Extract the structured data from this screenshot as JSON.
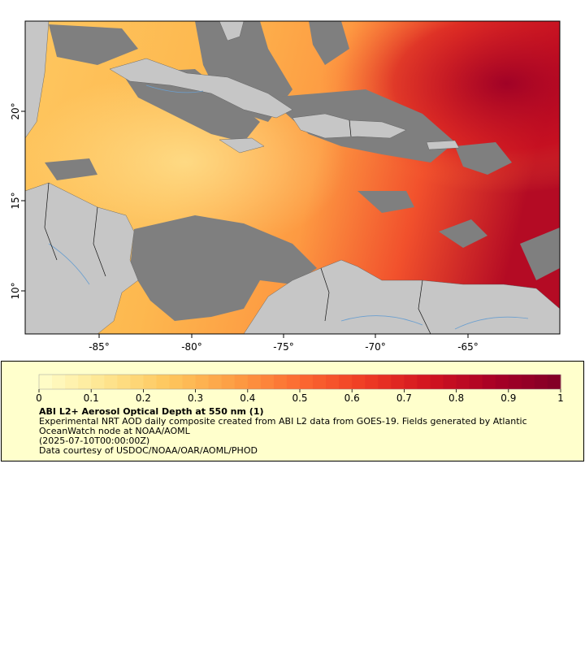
{
  "map": {
    "x_ticks": [
      "-85°",
      "-80°",
      "-75°",
      "-70°",
      "-65°"
    ],
    "y_ticks": [
      "20°",
      "15°",
      "10°"
    ],
    "colors": {
      "land": "#c6c6c6",
      "nodata": "#7f7f7f",
      "river": "#6a9fd0",
      "border": "#111111"
    }
  },
  "colorbar": {
    "ticks": [
      "0",
      "0.1",
      "0.2",
      "0.3",
      "0.4",
      "0.5",
      "0.6",
      "0.7",
      "0.8",
      "0.9",
      "1"
    ],
    "range": [
      0,
      1
    ],
    "colors": [
      "#ffffcc",
      "#fee590",
      "#fec65c",
      "#fd9d43",
      "#fc6a31",
      "#ef3b24",
      "#d1131f",
      "#a70026",
      "#800026"
    ]
  },
  "legend": {
    "title": "ABI L2+ Aerosol Optical Depth at 550 nm (1)",
    "description": "Experimental NRT AOD daily composite created from ABI L2 data from GOES-19. Fields generated by Atlantic OceanWatch node at NOAA/AOML",
    "time": "(2025-07-10T00:00:00Z)",
    "credit": "Data courtesy of USDOC/NOAA/OAR/AOML/PHOD"
  }
}
